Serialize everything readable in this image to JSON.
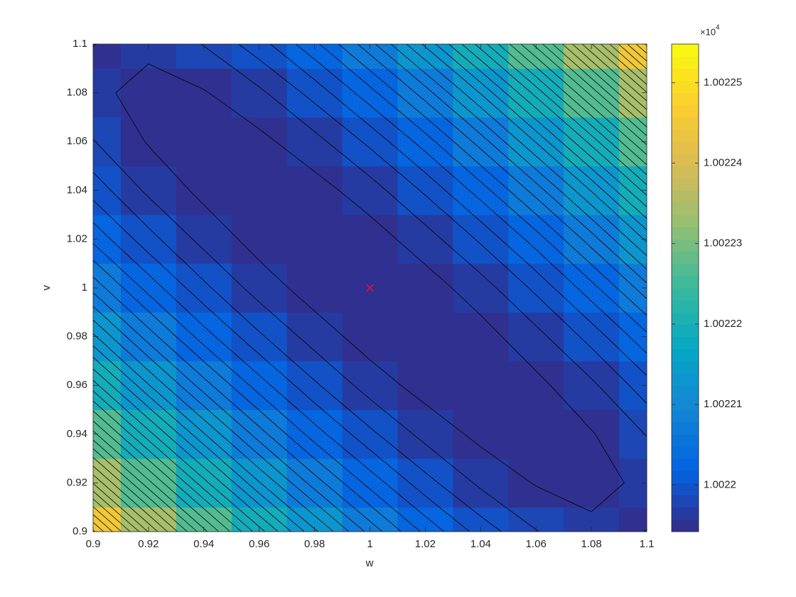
{
  "chart_data": {
    "type": "contourf",
    "x_label": "w",
    "y_label": "v",
    "x": [
      0.9,
      0.92,
      0.94,
      0.96,
      0.98,
      1,
      1.02,
      1.04,
      1.06,
      1.08,
      1.1
    ],
    "y": [
      0.9,
      0.92,
      0.94,
      0.96,
      0.98,
      1,
      1.02,
      1.04,
      1.06,
      1.08,
      1.1
    ],
    "z": [
      [
        1.0022445,
        1.002235,
        1.0022265,
        1.0022191,
        1.0022127,
        1.0022073,
        1.0022029,
        1.0021996,
        1.0021973,
        1.002196,
        1.0021957
      ],
      [
        1.002235,
        1.0022265,
        1.002219,
        1.0022125,
        1.0022071,
        1.0022027,
        1.0021993,
        1.0021969,
        1.0021956,
        1.0021953,
        1.002196
      ],
      [
        1.0022265,
        1.002219,
        1.0022125,
        1.002207,
        1.0022025,
        1.0021991,
        1.0021967,
        1.0021953,
        1.0021949,
        1.0021956,
        1.0021973
      ],
      [
        1.0022191,
        1.0022125,
        1.002207,
        1.0022025,
        1.002199,
        1.0021965,
        1.0021951,
        1.0021947,
        1.0021953,
        1.0021969,
        1.0021996
      ],
      [
        1.0022127,
        1.0022071,
        1.0022025,
        1.002199,
        1.0021965,
        1.002195,
        1.0021945,
        1.0021951,
        1.0021967,
        1.0021993,
        1.0022029
      ],
      [
        1.0022073,
        1.0022027,
        1.0021991,
        1.0021965,
        1.002195,
        1.0021945,
        1.002195,
        1.0021965,
        1.0021991,
        1.0022027,
        1.0022073
      ],
      [
        1.0022029,
        1.0021993,
        1.0021967,
        1.0021951,
        1.0021945,
        1.002195,
        1.0021965,
        1.002199,
        1.0022025,
        1.0022071,
        1.0022127
      ],
      [
        1.0021996,
        1.0021969,
        1.0021953,
        1.0021947,
        1.0021951,
        1.0021965,
        1.002199,
        1.0022025,
        1.002207,
        1.0022125,
        1.0022191
      ],
      [
        1.0021973,
        1.0021956,
        1.0021949,
        1.0021953,
        1.0021967,
        1.0021991,
        1.0022025,
        1.002207,
        1.0022125,
        1.002219,
        1.0022265
      ],
      [
        1.002196,
        1.0021953,
        1.0021956,
        1.0021969,
        1.0021993,
        1.0022027,
        1.0022071,
        1.0022125,
        1.002219,
        1.0022265,
        1.002235
      ],
      [
        1.0021957,
        1.002196,
        1.0021973,
        1.0021996,
        1.0022029,
        1.0022073,
        1.0022127,
        1.0022191,
        1.0022265,
        1.002235,
        1.0022445
      ]
    ],
    "xlim": [
      0.9,
      1.1
    ],
    "ylim": [
      0.9,
      1.1
    ],
    "xticks": [
      0.9,
      0.92,
      0.94,
      0.96,
      0.98,
      1,
      1.02,
      1.04,
      1.06,
      1.08,
      1.1
    ],
    "yticks": [
      0.9,
      0.92,
      0.94,
      0.96,
      0.98,
      1,
      1.02,
      1.04,
      1.06,
      1.08,
      1.1
    ],
    "colormap": "parula",
    "levels": 40,
    "line_color": "#000000",
    "colorbar": {
      "clim": [
        1.0021942,
        1.0022548
      ],
      "ticks": [
        1.0022,
        1.00221,
        1.00222,
        1.00223,
        1.00224,
        1.00225
      ],
      "multiplier": {
        "base": "×10",
        "exponent": "4"
      }
    },
    "marker": {
      "x": 1,
      "y": 1,
      "color": "#e8102a"
    }
  }
}
